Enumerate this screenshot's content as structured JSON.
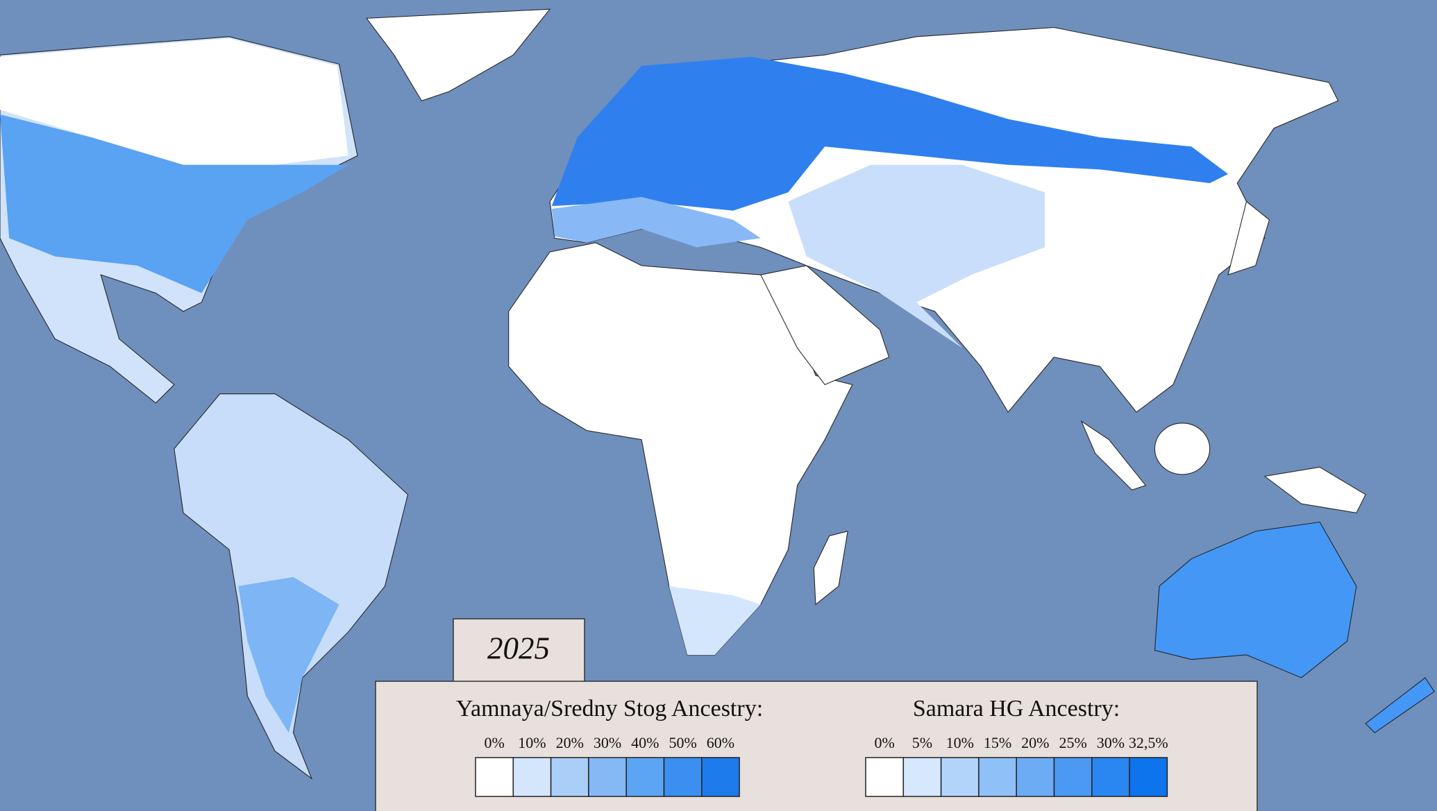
{
  "year_label": "2025",
  "legends": [
    {
      "title": "Yamnaya/Sredny Stog Ancestry:",
      "items": [
        {
          "label": "0%",
          "color": "#ffffff"
        },
        {
          "label": "10%",
          "color": "#d3e6fc"
        },
        {
          "label": "20%",
          "color": "#a9cff9"
        },
        {
          "label": "30%",
          "color": "#84b9f6"
        },
        {
          "label": "40%",
          "color": "#5ca4f4"
        },
        {
          "label": "50%",
          "color": "#3a8ff0"
        },
        {
          "label": "60%",
          "color": "#1d7beb"
        }
      ]
    },
    {
      "title": "Samara HG Ancestry:",
      "items": [
        {
          "label": "0%",
          "color": "#ffffff"
        },
        {
          "label": "5%",
          "color": "#d6e8fd"
        },
        {
          "label": "10%",
          "color": "#b3d4fa"
        },
        {
          "label": "15%",
          "color": "#8fc0f8"
        },
        {
          "label": "20%",
          "color": "#6cacf5"
        },
        {
          "label": "25%",
          "color": "#4b99f3"
        },
        {
          "label": "30%",
          "color": "#2a86f0"
        },
        {
          "label": "32,5%",
          "color": "#0d74ee"
        }
      ]
    }
  ]
}
